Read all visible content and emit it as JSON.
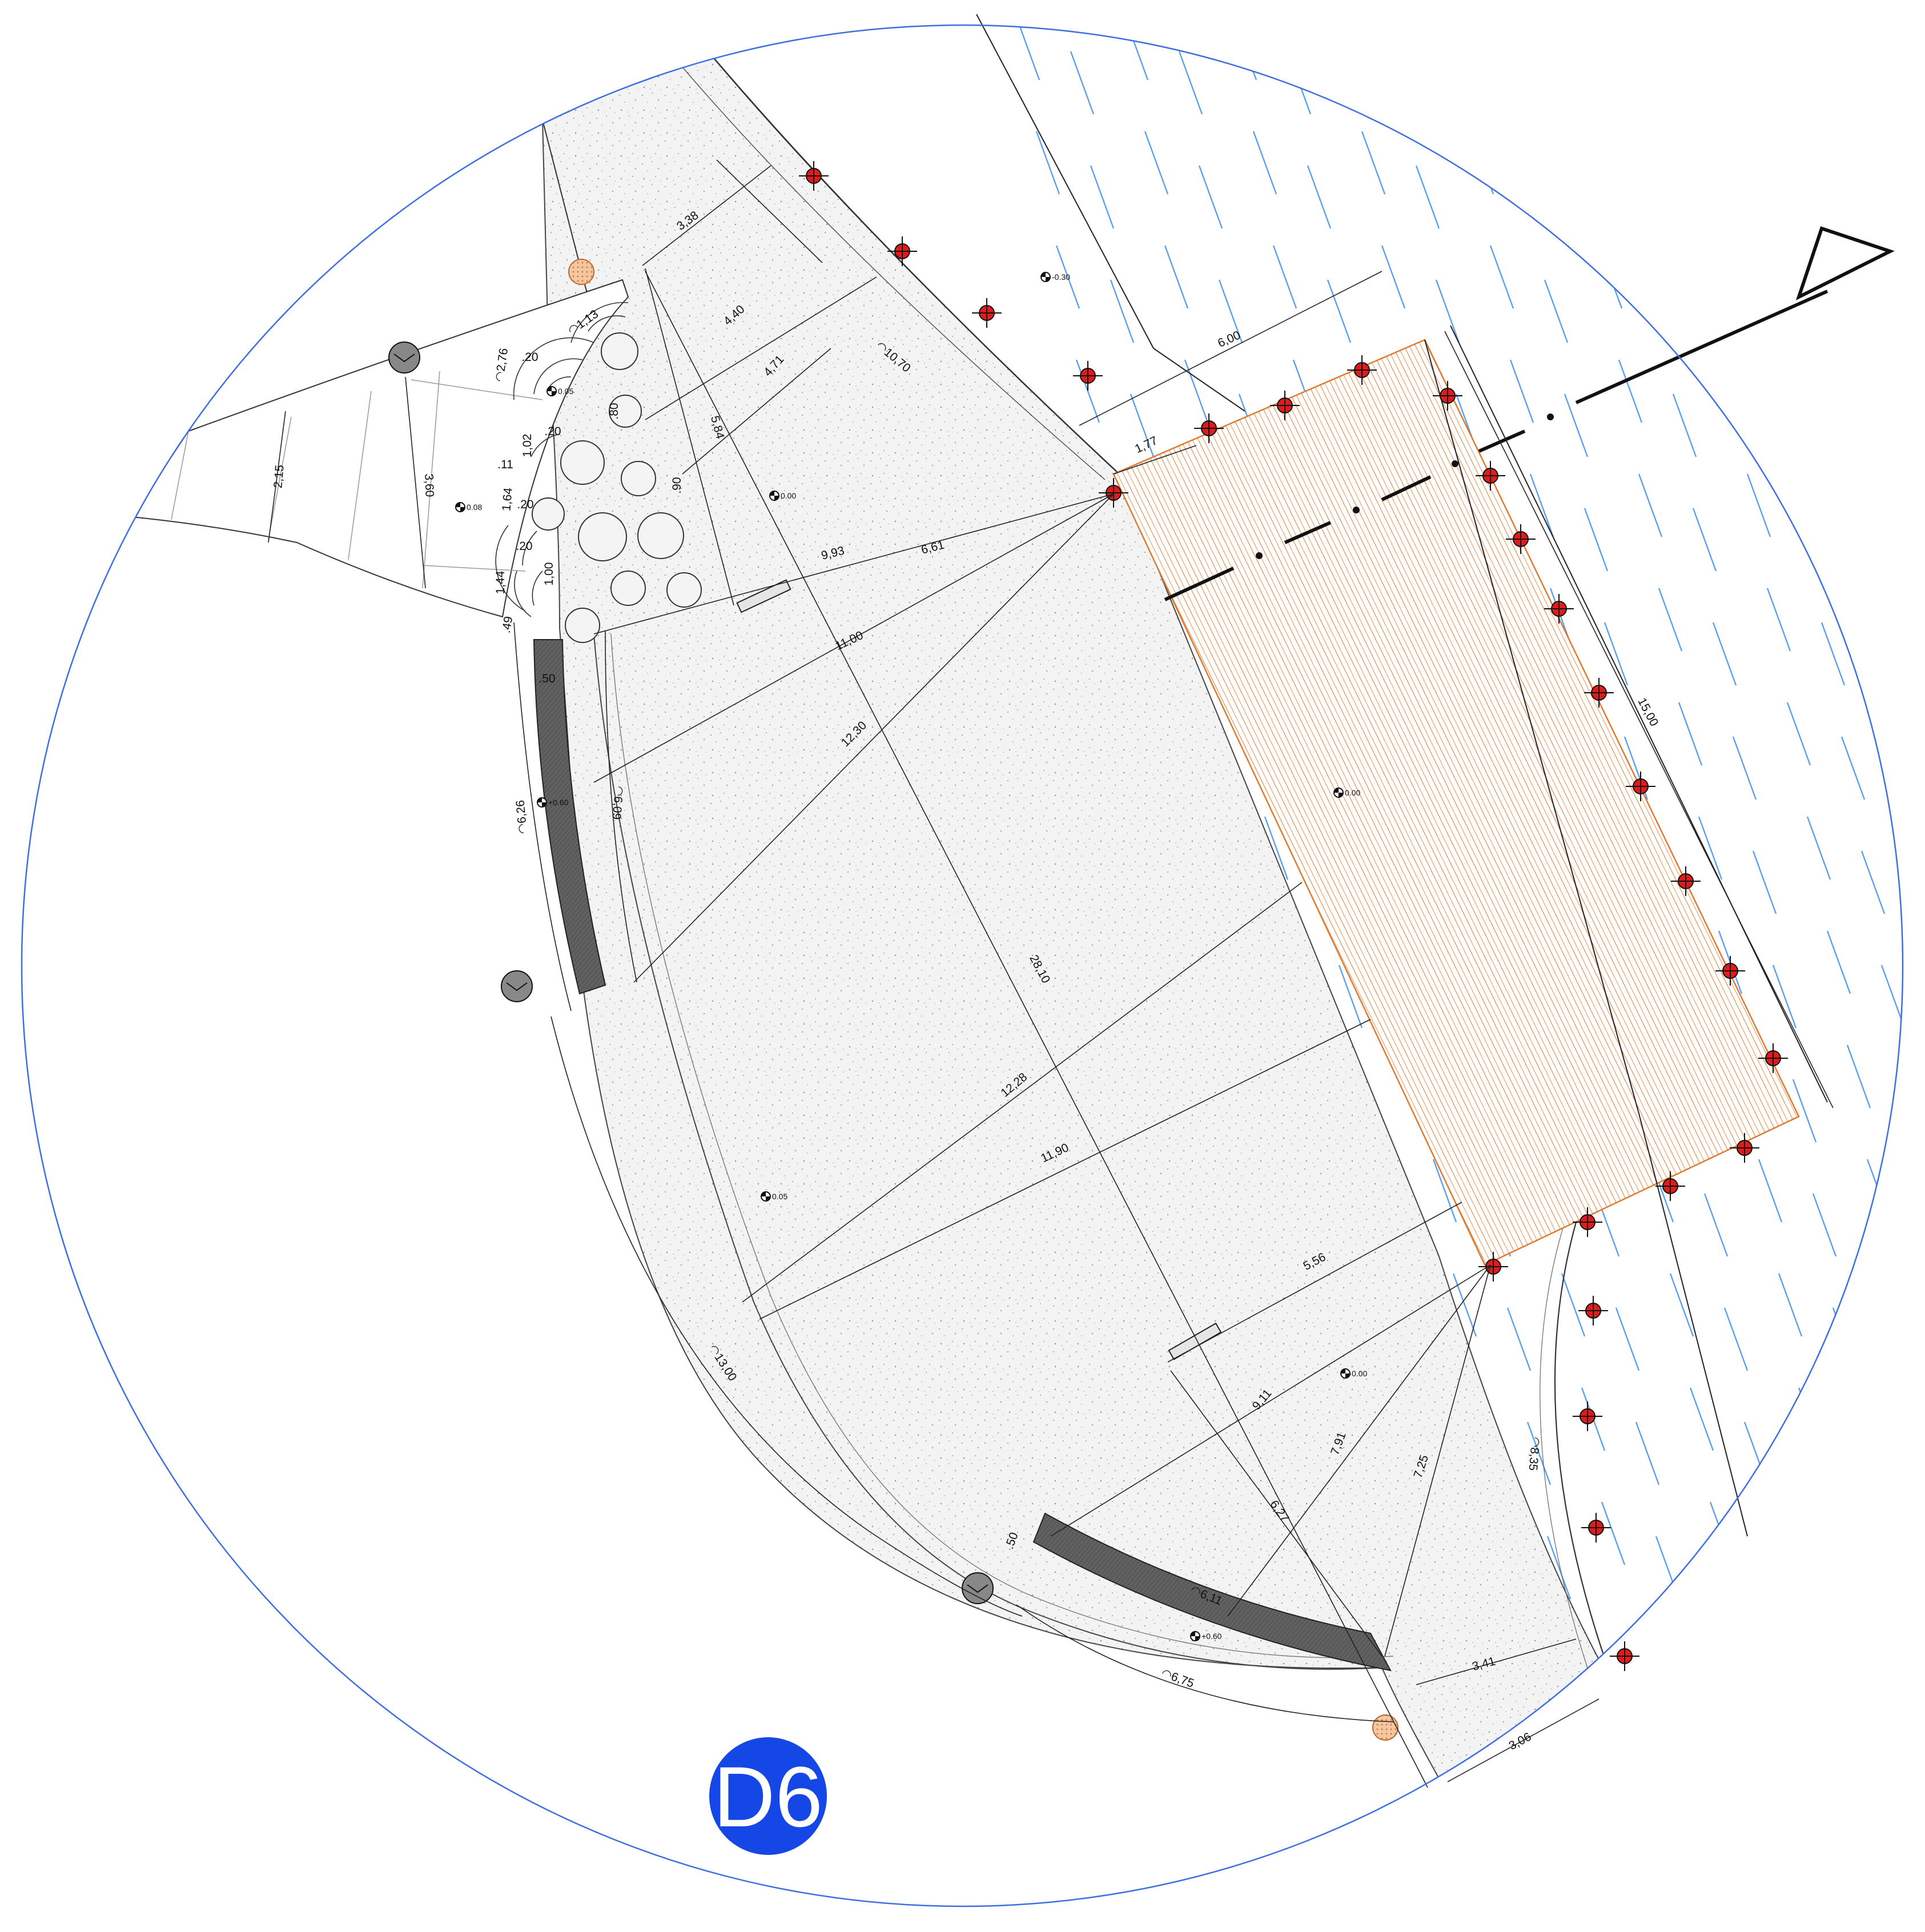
{
  "badge": {
    "label": "D6",
    "color": "#1447e6"
  },
  "colors": {
    "boundary": "#3d6fe0",
    "water": "#5aa0ee",
    "deck": "#e07a2e",
    "paving": "#f2f2f2",
    "marker": "#e01b1b",
    "wall": "#5d5d5d"
  },
  "dimensions": {
    "d338": "3,38",
    "d440": "4,40",
    "d471": "4,71",
    "d584": "5,84",
    "a1070": "◠10,70",
    "d600": "6,00",
    "d177": "1,77",
    "d993": "9,93",
    "d661": "6,61",
    "d1100": "11,00",
    "d1230": "12,30",
    "d2810": "28,10",
    "d1228": "12,28",
    "d1190": "11,90",
    "d1500": "15,00",
    "d556": "5,56",
    "d911": "9,11",
    "d791": "7,91",
    "d725": "7,25",
    "d627": "6,27",
    "a835": "◠8,35",
    "d341": "3,41",
    "d306": "3,06",
    "a675": "◠6,75",
    "a611": "◠6,11",
    "a1300": "◠13,00",
    "a626": "◠6,26",
    "a609": "◠6,09",
    "d050a": ".50",
    "d050b": ".50",
    "d049": ".49",
    "d215": "2,15",
    "d360": "3,60",
    "a276": "◠2,76",
    "a113": "◠1,13",
    "d020a": ".20",
    "d020b": ".20",
    "d020c": ".20",
    "d020d": ".20",
    "d080": ".80",
    "d090": ".90",
    "d102": "1,02",
    "d164": "1,64",
    "d144": "1,44",
    "d100": "1,00",
    "d011": ".11"
  },
  "levels": {
    "l030": "-0.30",
    "l005a": "0.05",
    "l000a": "0.00",
    "l008": "0.08",
    "l000b": "0.00",
    "l005b": "0.05",
    "l000c": "0.00",
    "l060a": "+0.60",
    "l060b": "+0.60"
  }
}
